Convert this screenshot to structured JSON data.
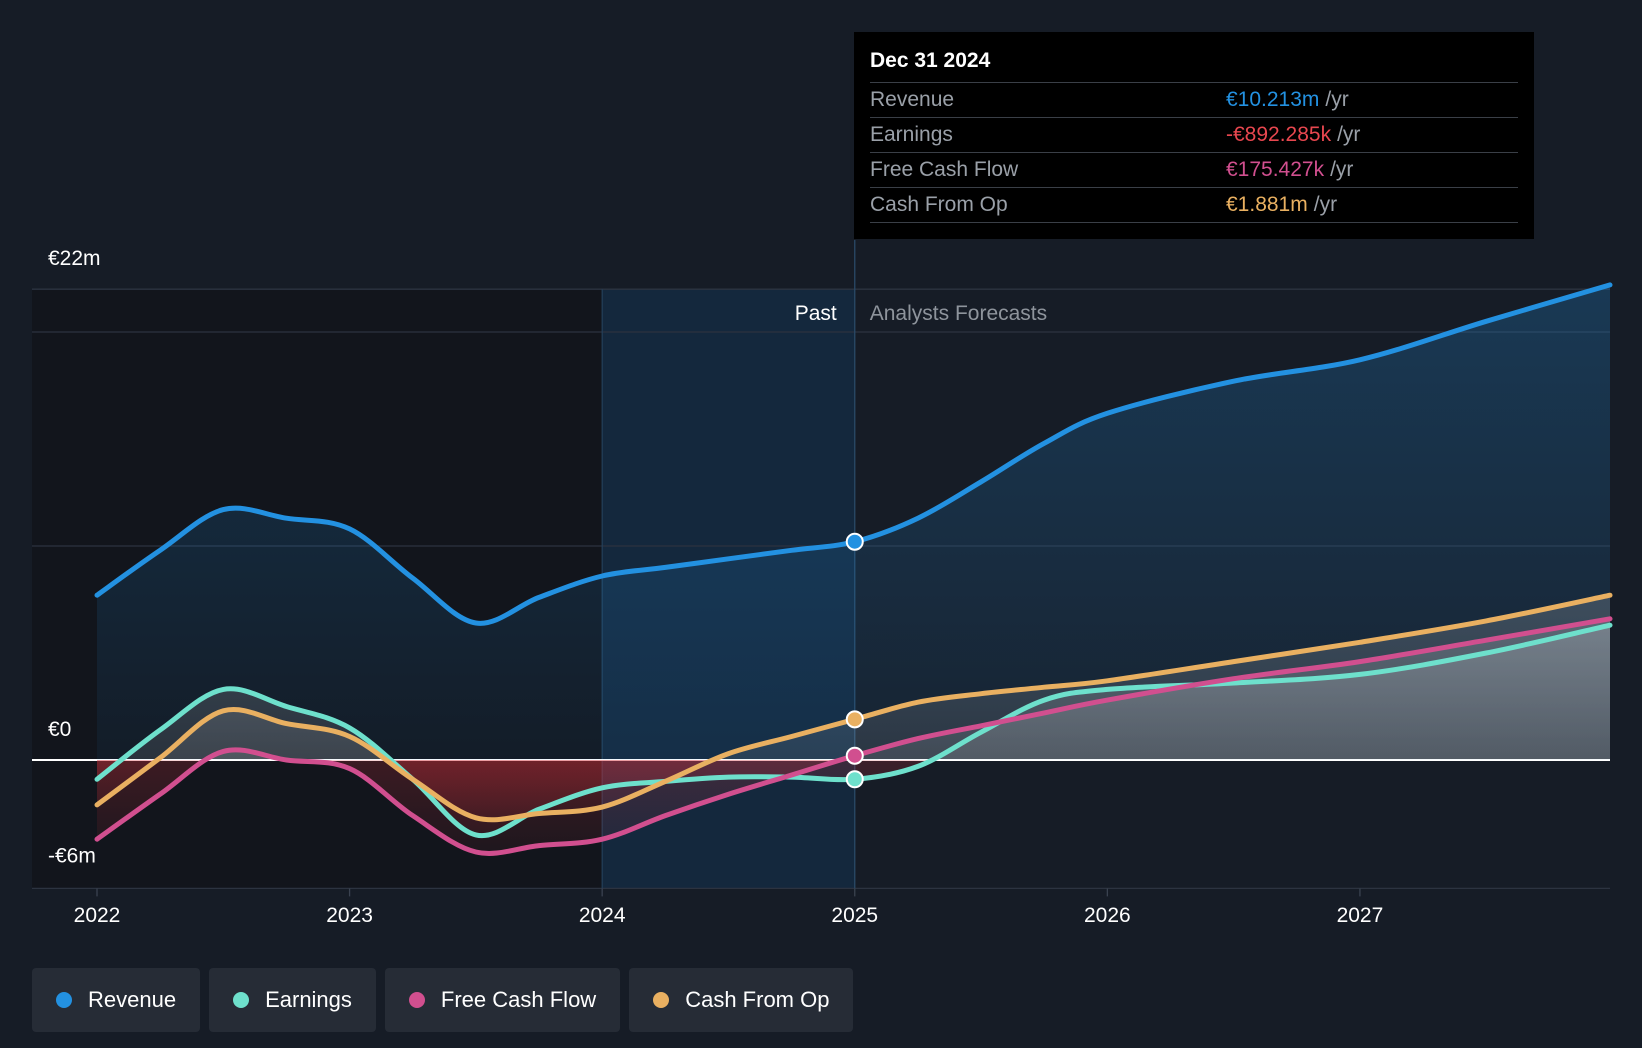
{
  "tooltip": {
    "date": "Dec 31 2024",
    "rows": [
      {
        "label": "Revenue",
        "value": "€10.213m",
        "unit": "/yr",
        "color": "#2391e1"
      },
      {
        "label": "Earnings",
        "value": "-€892.285k",
        "unit": "/yr",
        "color": "#e8474f"
      },
      {
        "label": "Free Cash Flow",
        "value": "€175.427k",
        "unit": "/yr",
        "color": "#d14f8f"
      },
      {
        "label": "Cash From Op",
        "value": "€1.881m",
        "unit": "/yr",
        "color": "#e9b061"
      }
    ]
  },
  "legend": [
    {
      "label": "Revenue",
      "color": "#2391e1"
    },
    {
      "label": "Earnings",
      "color": "#6ee0cc"
    },
    {
      "label": "Free Cash Flow",
      "color": "#d14f8f"
    },
    {
      "label": "Cash From Op",
      "color": "#e9b061"
    }
  ],
  "chart_data": {
    "type": "line",
    "y_tick_labels": [
      "€22m",
      "€0",
      "-€6m"
    ],
    "ylim": [
      -6,
      22
    ],
    "x_tick_labels": [
      "2022",
      "2023",
      "2024",
      "2025",
      "2026",
      "2027"
    ],
    "xlim": [
      2022.0,
      2027.99
    ],
    "divider_x": 2025.0,
    "highlight_start_x": 2024.0,
    "past_label": "Past",
    "forecast_label": "Analysts Forecasts",
    "series": [
      {
        "name": "Revenue",
        "color": "#2391e1",
        "points": [
          [
            2022.0,
            7.7
          ],
          [
            2022.25,
            9.8
          ],
          [
            2022.5,
            11.7
          ],
          [
            2022.75,
            11.3
          ],
          [
            2023.0,
            10.8
          ],
          [
            2023.25,
            8.5
          ],
          [
            2023.5,
            6.4
          ],
          [
            2023.75,
            7.6
          ],
          [
            2024.0,
            8.6
          ],
          [
            2024.25,
            9.0
          ],
          [
            2024.5,
            9.4
          ],
          [
            2024.75,
            9.8
          ],
          [
            2025.0,
            10.2
          ],
          [
            2025.25,
            11.3
          ],
          [
            2025.5,
            13.0
          ],
          [
            2025.75,
            14.8
          ],
          [
            2026.0,
            16.2
          ],
          [
            2026.5,
            17.7
          ],
          [
            2027.0,
            18.7
          ],
          [
            2027.5,
            20.5
          ],
          [
            2027.99,
            22.2
          ]
        ]
      },
      {
        "name": "Earnings",
        "color": "#6ee0cc",
        "points": [
          [
            2022.0,
            -0.9
          ],
          [
            2022.25,
            1.4
          ],
          [
            2022.5,
            3.3
          ],
          [
            2022.75,
            2.5
          ],
          [
            2023.0,
            1.5
          ],
          [
            2023.25,
            -0.9
          ],
          [
            2023.5,
            -3.5
          ],
          [
            2023.75,
            -2.3
          ],
          [
            2024.0,
            -1.3
          ],
          [
            2024.25,
            -1.0
          ],
          [
            2024.5,
            -0.8
          ],
          [
            2024.75,
            -0.8
          ],
          [
            2025.0,
            -0.9
          ],
          [
            2025.25,
            -0.3
          ],
          [
            2025.5,
            1.3
          ],
          [
            2025.75,
            2.8
          ],
          [
            2026.0,
            3.3
          ],
          [
            2026.5,
            3.6
          ],
          [
            2027.0,
            4.0
          ],
          [
            2027.5,
            5.0
          ],
          [
            2027.99,
            6.3
          ]
        ]
      },
      {
        "name": "Free Cash Flow",
        "color": "#d14f8f",
        "points": [
          [
            2022.0,
            -3.7
          ],
          [
            2022.25,
            -1.6
          ],
          [
            2022.5,
            0.4
          ],
          [
            2022.75,
            0.0
          ],
          [
            2023.0,
            -0.4
          ],
          [
            2023.25,
            -2.6
          ],
          [
            2023.5,
            -4.3
          ],
          [
            2023.75,
            -4.0
          ],
          [
            2024.0,
            -3.7
          ],
          [
            2024.25,
            -2.6
          ],
          [
            2024.5,
            -1.6
          ],
          [
            2024.75,
            -0.7
          ],
          [
            2025.0,
            0.2
          ],
          [
            2025.25,
            1.0
          ],
          [
            2025.5,
            1.6
          ],
          [
            2025.75,
            2.2
          ],
          [
            2026.0,
            2.8
          ],
          [
            2026.5,
            3.8
          ],
          [
            2027.0,
            4.6
          ],
          [
            2027.5,
            5.6
          ],
          [
            2027.99,
            6.6
          ]
        ]
      },
      {
        "name": "Cash From Op",
        "color": "#e9b061",
        "points": [
          [
            2022.0,
            -2.1
          ],
          [
            2022.25,
            0.1
          ],
          [
            2022.5,
            2.3
          ],
          [
            2022.75,
            1.7
          ],
          [
            2023.0,
            1.1
          ],
          [
            2023.25,
            -0.9
          ],
          [
            2023.5,
            -2.7
          ],
          [
            2023.75,
            -2.5
          ],
          [
            2024.0,
            -2.2
          ],
          [
            2024.25,
            -1.0
          ],
          [
            2024.5,
            0.3
          ],
          [
            2024.75,
            1.1
          ],
          [
            2025.0,
            1.9
          ],
          [
            2025.25,
            2.7
          ],
          [
            2025.5,
            3.1
          ],
          [
            2025.75,
            3.4
          ],
          [
            2026.0,
            3.7
          ],
          [
            2026.5,
            4.6
          ],
          [
            2027.0,
            5.5
          ],
          [
            2027.5,
            6.5
          ],
          [
            2027.99,
            7.7
          ]
        ]
      }
    ]
  }
}
